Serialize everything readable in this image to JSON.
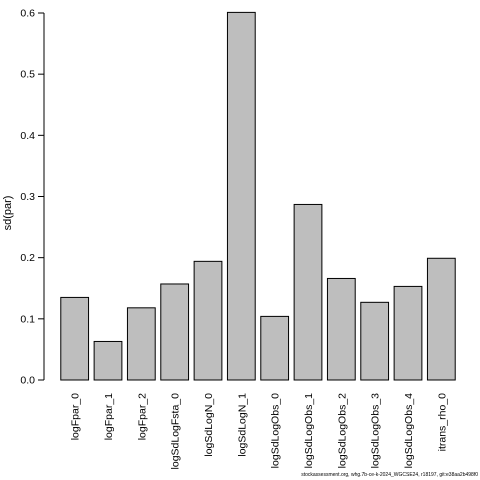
{
  "chart_data": {
    "type": "bar",
    "categories": [
      "logFpar_0",
      "logFpar_1",
      "logFpar_2",
      "logSdLogFsta_0",
      "logSdLogN_0",
      "logSdLogN_1",
      "logSdLogObs_0",
      "logSdLogObs_1",
      "logSdLogObs_2",
      "logSdLogObs_3",
      "logSdLogObs_4",
      "itrans_rho_0"
    ],
    "values": [
      0.135,
      0.063,
      0.118,
      0.157,
      0.194,
      0.601,
      0.104,
      0.287,
      0.166,
      0.127,
      0.153,
      0.199
    ],
    "ylabel": "sd(par)",
    "xlabel": "",
    "title": "",
    "ylim": [
      0,
      0.6
    ],
    "yticks": [
      "0.0",
      "0.1",
      "0.2",
      "0.3",
      "0.4",
      "0.5",
      "0.6"
    ],
    "grid": false,
    "bar_color": "#bebebe",
    "bar_border_color": "#000000"
  },
  "footnote": "stockassessment.org, whg.7b-ce-k-2024_WGCSE24, r18197, git:e38aa2b498f0"
}
